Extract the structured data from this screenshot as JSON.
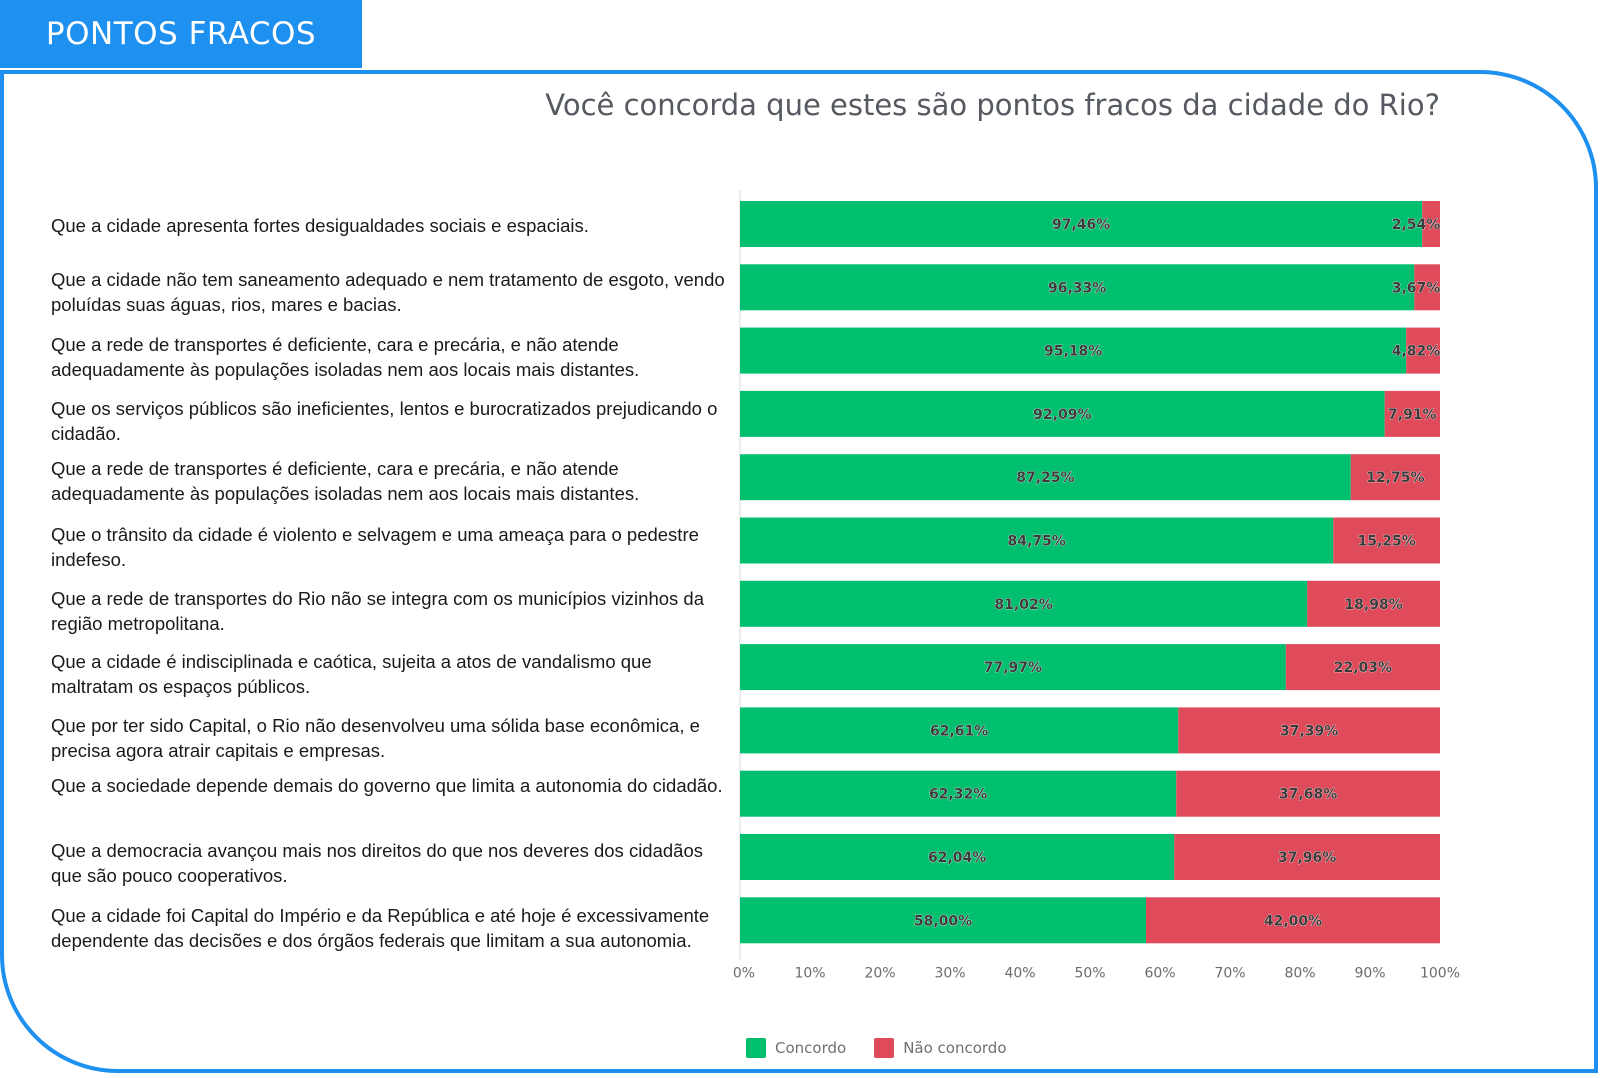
{
  "header": {
    "title": "PONTOS FRACOS"
  },
  "chart_data": {
    "type": "bar",
    "orientation": "horizontal",
    "stacked": true,
    "title": "Você concorda que estes são pontos fracos da cidade do Rio?",
    "categories": [
      "Que a cidade apresenta fortes desigualdades sociais e espaciais.",
      "Que a cidade não tem saneamento adequado e nem tratamento de esgoto, vendo poluídas suas águas, rios, mares e bacias.",
      "Que a rede de transportes é deficiente, cara e precária, e não atende adequadamente às populações isoladas nem aos locais mais distantes.",
      "Que os serviços públicos são ineficientes, lentos e burocratizados prejudicando o cidadão.",
      "Que a rede de transportes é deficiente, cara e precária, e não atende adequadamente às populações isoladas nem aos locais mais distantes.",
      "Que o trânsito da cidade é violento e selvagem e uma ameaça para o pedestre indefeso.",
      "Que a rede de transportes do Rio não se integra com os municípios vizinhos da região metropolitana.",
      "Que a cidade é indisciplinada e caótica, sujeita a atos de vandalismo que maltratam os espaços públicos.",
      "Que por ter sido Capital, o Rio não desenvolveu uma sólida base econômica, e precisa agora atrair capitais e empresas.",
      "Que a sociedade depende demais do governo que limita a autonomia do cidadão.",
      "Que a democracia avançou mais nos direitos do que nos deveres dos cidadãos que são pouco cooperativos.",
      "Que a cidade foi Capital do Império e da República e até hoje é excessivamente dependente das decisões e dos órgãos federais que limitam a sua autonomia."
    ],
    "series": [
      {
        "name": "Concordo",
        "color": "#00bf6f",
        "values": [
          97.46,
          96.33,
          95.18,
          92.09,
          87.25,
          84.75,
          81.02,
          77.97,
          62.61,
          62.32,
          62.04,
          58.0
        ],
        "labels": [
          "97,46%",
          "96,33%",
          "95,18%",
          "92,09%",
          "87,25%",
          "84,75%",
          "81,02%",
          "77,97%",
          "62,61%",
          "62,32%",
          "62,04%",
          "58,00%"
        ]
      },
      {
        "name": "Não concordo",
        "color": "#e04b5c",
        "values": [
          2.54,
          3.67,
          4.82,
          7.91,
          12.75,
          15.25,
          18.98,
          22.03,
          37.39,
          37.68,
          37.96,
          42.0
        ],
        "labels": [
          "2,54%",
          "3,67%",
          "4,82%",
          "7,91%",
          "12,75%",
          "15,25%",
          "18,98%",
          "22,03%",
          "37,39%",
          "37,68%",
          "37,96%",
          "42,00%"
        ]
      }
    ],
    "xlim": [
      0,
      100
    ],
    "xticks": [
      "0%",
      "10%",
      "20%",
      "30%",
      "40%",
      "50%",
      "60%",
      "70%",
      "80%",
      "90%",
      "100%"
    ],
    "grid": false,
    "legend_position": "bottom-left"
  }
}
